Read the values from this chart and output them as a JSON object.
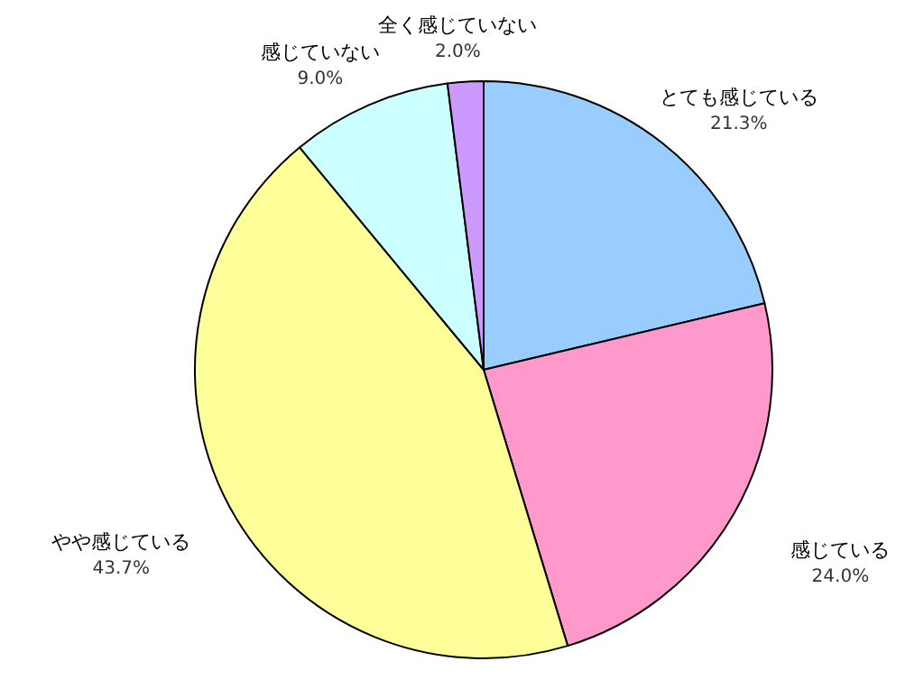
{
  "chart_data": {
    "type": "pie",
    "categories": [
      "とても感じている",
      "感じている",
      "やや感じている",
      "感じていない",
      "全く感じていない"
    ],
    "values": [
      21.3,
      24.0,
      43.7,
      9.0,
      2.0
    ],
    "value_labels": [
      "21.3%",
      "24.0%",
      "43.7%",
      "9.0%",
      "2.0%"
    ],
    "colors": [
      "#99ccff",
      "#ff99cc",
      "#ffff99",
      "#ccffff",
      "#cc99ff"
    ],
    "legend": false
  }
}
